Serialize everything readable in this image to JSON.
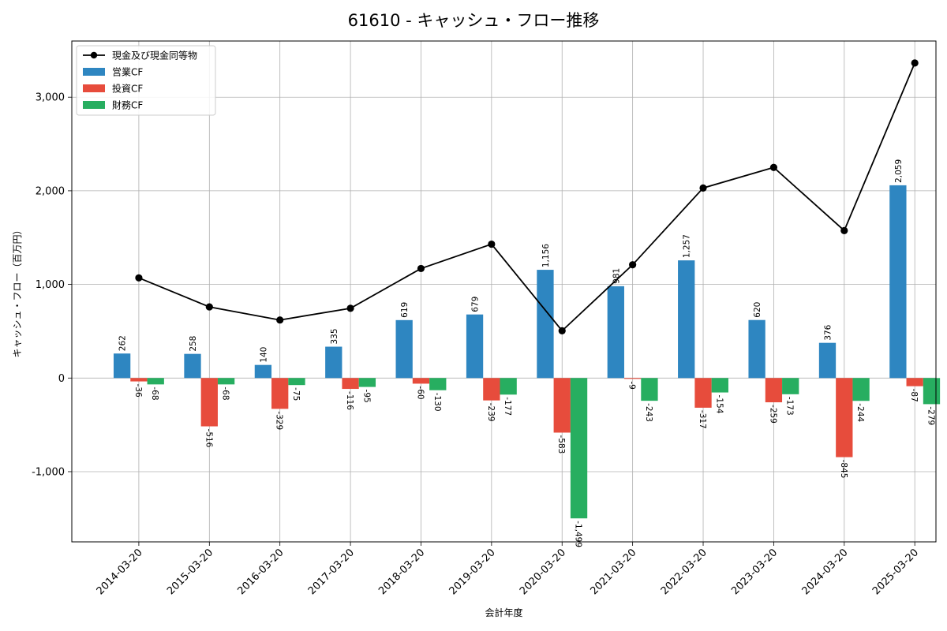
{
  "chart_data": {
    "type": "bar",
    "title": "61610 - キャッシュ・フロー推移",
    "xlabel": "会計年度",
    "ylabel": "キャッシュ・フロー（百万円）",
    "categories": [
      "2014-03-20",
      "2015-03-20",
      "2016-03-20",
      "2017-03-20",
      "2018-03-20",
      "2019-03-20",
      "2020-03-20",
      "2021-03-20",
      "2022-03-20",
      "2023-03-20",
      "2024-03-20",
      "2025-03-20"
    ],
    "ylim": [
      -1750,
      3600
    ],
    "yticks": [
      -1000,
      0,
      1000,
      2000,
      3000
    ],
    "ytick_labels": [
      "-1,000",
      "0",
      "1,000",
      "2,000",
      "3,000"
    ],
    "grid": true,
    "legend_position": "top-left",
    "series": [
      {
        "name": "営業CF",
        "kind": "bar",
        "color": "#2e86c1",
        "values": [
          262,
          258,
          140,
          335,
          619,
          679,
          1156,
          981,
          1257,
          620,
          376,
          2059
        ],
        "labels": [
          "262",
          "258",
          "140",
          "335",
          "619",
          "679",
          "1,156",
          "981",
          "1,257",
          "620",
          "376",
          "2,059"
        ]
      },
      {
        "name": "投資CF",
        "kind": "bar",
        "color": "#e74c3c",
        "values": [
          -36,
          -516,
          -329,
          -116,
          -60,
          -239,
          -583,
          -9,
          -317,
          -259,
          -845,
          -87
        ],
        "labels": [
          "-36",
          "-516",
          "-329",
          "-116",
          "-60",
          "-239",
          "-583",
          "-9",
          "-317",
          "-259",
          "-845",
          "-87"
        ]
      },
      {
        "name": "財務CF",
        "kind": "bar",
        "color": "#27ae60",
        "values": [
          -68,
          -68,
          -75,
          -95,
          -130,
          -177,
          -1499,
          -243,
          -154,
          -173,
          -244,
          -279
        ],
        "labels": [
          "-68",
          "-68",
          "-75",
          "-95",
          "-130",
          "-177",
          "-1,499",
          "-243",
          "-154",
          "-173",
          "-244",
          "-279"
        ]
      },
      {
        "name": "現金及び現金同等物",
        "kind": "line",
        "color": "#000000",
        "values": [
          1070,
          760,
          620,
          745,
          1170,
          1430,
          505,
          1210,
          2030,
          2250,
          1575,
          3365
        ]
      }
    ]
  }
}
